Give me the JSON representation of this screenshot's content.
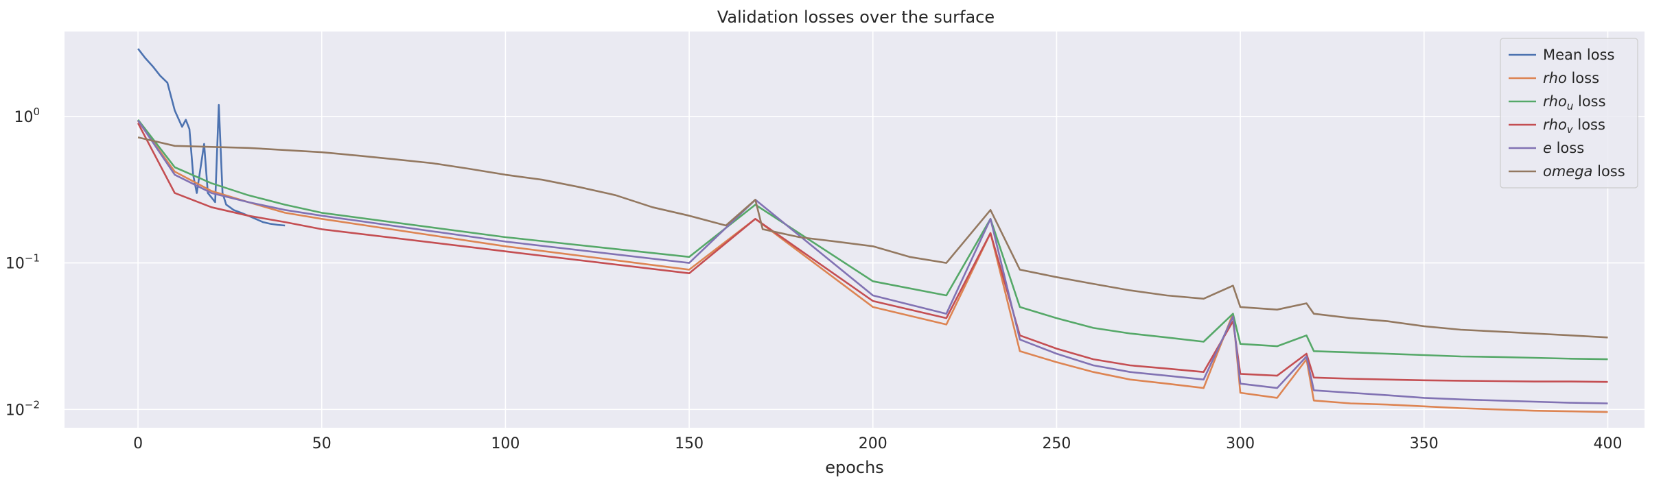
{
  "chart_data": {
    "type": "line",
    "title": "Validation losses over the surface",
    "xlabel": "epochs",
    "ylabel": "",
    "xlim": [
      -20,
      410
    ],
    "ylim": [
      0.0075,
      3.8
    ],
    "yscale": "log",
    "grid": true,
    "legend_position": "top-right",
    "x_ticks": [
      0,
      50,
      100,
      150,
      200,
      250,
      300,
      350,
      400
    ],
    "y_ticks": [
      {
        "value": 0.01,
        "base": "10",
        "exp": "−2"
      },
      {
        "value": 0.1,
        "base": "10",
        "exp": "−1"
      },
      {
        "value": 1,
        "base": "10",
        "exp": "0"
      }
    ],
    "colors": {
      "background": "#eaeaf2",
      "grid": "#ffffff",
      "mean": "#4c72b0",
      "rho": "#dd8452",
      "rho_u": "#55a868",
      "rho_v": "#c44e52",
      "e": "#8172b3",
      "omega": "#937860"
    },
    "series": [
      {
        "name": "Mean loss",
        "color": "#4c72b0",
        "legend": [
          {
            "t": "Mean loss"
          }
        ],
        "x": [
          0,
          2,
          4,
          6,
          8,
          10,
          12,
          13,
          14,
          15,
          16,
          18,
          19,
          20,
          21,
          22,
          23,
          24,
          25,
          26,
          28,
          30,
          32,
          34,
          36,
          38,
          40
        ],
        "values": [
          2.9,
          2.5,
          2.2,
          1.9,
          1.7,
          1.1,
          0.85,
          0.95,
          0.82,
          0.4,
          0.3,
          0.65,
          0.3,
          0.28,
          0.26,
          1.2,
          0.3,
          0.25,
          0.24,
          0.23,
          0.22,
          0.21,
          0.2,
          0.19,
          0.185,
          0.182,
          0.18
        ]
      },
      {
        "name": "rho loss",
        "color": "#dd8452",
        "legend": [
          {
            "t": "rho",
            "i": true
          },
          {
            "t": " loss"
          }
        ],
        "x": [
          0,
          10,
          20,
          30,
          40,
          50,
          100,
          150,
          168,
          200,
          220,
          232,
          240,
          250,
          260,
          270,
          280,
          290,
          298,
          300,
          310,
          318,
          320,
          330,
          340,
          350,
          360,
          370,
          380,
          390,
          400
        ],
        "values": [
          0.93,
          0.42,
          0.31,
          0.26,
          0.22,
          0.2,
          0.13,
          0.09,
          0.2,
          0.05,
          0.038,
          0.16,
          0.025,
          0.021,
          0.018,
          0.016,
          0.015,
          0.014,
          0.045,
          0.013,
          0.012,
          0.022,
          0.0115,
          0.011,
          0.0108,
          0.0105,
          0.0102,
          0.01,
          0.0098,
          0.0097,
          0.0096
        ]
      },
      {
        "name": "rho_u loss",
        "color": "#55a868",
        "legend": [
          {
            "t": "rho",
            "i": true
          },
          {
            "t": "u",
            "i": true,
            "sub": true
          },
          {
            "t": " loss"
          }
        ],
        "x": [
          0,
          10,
          20,
          30,
          40,
          50,
          100,
          150,
          168,
          200,
          220,
          232,
          240,
          250,
          260,
          270,
          280,
          290,
          298,
          300,
          310,
          318,
          320,
          330,
          340,
          350,
          360,
          370,
          380,
          390,
          400
        ],
        "values": [
          0.95,
          0.45,
          0.35,
          0.29,
          0.25,
          0.22,
          0.15,
          0.11,
          0.25,
          0.075,
          0.06,
          0.2,
          0.05,
          0.042,
          0.036,
          0.033,
          0.031,
          0.029,
          0.045,
          0.028,
          0.027,
          0.032,
          0.025,
          0.0245,
          0.024,
          0.0235,
          0.023,
          0.0228,
          0.0225,
          0.0222,
          0.022
        ]
      },
      {
        "name": "rho_v loss",
        "color": "#c44e52",
        "legend": [
          {
            "t": "rho",
            "i": true
          },
          {
            "t": "v",
            "i": true,
            "sub": true
          },
          {
            "t": " loss"
          }
        ],
        "x": [
          0,
          10,
          20,
          30,
          40,
          50,
          100,
          150,
          168,
          200,
          220,
          232,
          240,
          250,
          260,
          270,
          280,
          290,
          298,
          300,
          310,
          318,
          320,
          330,
          340,
          350,
          360,
          370,
          380,
          390,
          400
        ],
        "values": [
          0.9,
          0.3,
          0.24,
          0.21,
          0.19,
          0.17,
          0.12,
          0.085,
          0.2,
          0.055,
          0.042,
          0.16,
          0.032,
          0.026,
          0.022,
          0.02,
          0.019,
          0.018,
          0.04,
          0.0175,
          0.017,
          0.024,
          0.0165,
          0.0162,
          0.016,
          0.0158,
          0.0157,
          0.0156,
          0.0155,
          0.0155,
          0.0154
        ]
      },
      {
        "name": "e loss",
        "color": "#8172b3",
        "legend": [
          {
            "t": "e",
            "i": true
          },
          {
            "t": " loss"
          }
        ],
        "x": [
          0,
          10,
          20,
          30,
          40,
          50,
          100,
          150,
          168,
          200,
          220,
          232,
          240,
          250,
          260,
          270,
          280,
          290,
          298,
          300,
          310,
          318,
          320,
          330,
          340,
          350,
          360,
          370,
          380,
          390,
          400
        ],
        "values": [
          0.94,
          0.4,
          0.3,
          0.26,
          0.23,
          0.21,
          0.14,
          0.1,
          0.27,
          0.06,
          0.045,
          0.2,
          0.03,
          0.024,
          0.02,
          0.018,
          0.017,
          0.016,
          0.043,
          0.015,
          0.014,
          0.023,
          0.0135,
          0.013,
          0.0125,
          0.012,
          0.0117,
          0.0115,
          0.0113,
          0.0111,
          0.011
        ]
      },
      {
        "name": "omega loss",
        "color": "#937860",
        "legend": [
          {
            "t": "omega",
            "i": true
          },
          {
            "t": " loss"
          }
        ],
        "x": [
          0,
          10,
          20,
          30,
          40,
          50,
          60,
          70,
          80,
          90,
          100,
          110,
          120,
          130,
          140,
          150,
          160,
          168,
          170,
          180,
          190,
          200,
          210,
          220,
          232,
          240,
          250,
          260,
          270,
          280,
          290,
          298,
          300,
          310,
          318,
          320,
          330,
          340,
          350,
          360,
          370,
          380,
          390,
          400
        ],
        "values": [
          0.72,
          0.63,
          0.62,
          0.61,
          0.59,
          0.57,
          0.54,
          0.51,
          0.48,
          0.44,
          0.4,
          0.37,
          0.33,
          0.29,
          0.24,
          0.21,
          0.18,
          0.27,
          0.17,
          0.15,
          0.14,
          0.13,
          0.11,
          0.1,
          0.23,
          0.09,
          0.08,
          0.072,
          0.065,
          0.06,
          0.057,
          0.07,
          0.05,
          0.048,
          0.053,
          0.045,
          0.042,
          0.04,
          0.037,
          0.035,
          0.034,
          0.033,
          0.032,
          0.031
        ]
      }
    ]
  }
}
